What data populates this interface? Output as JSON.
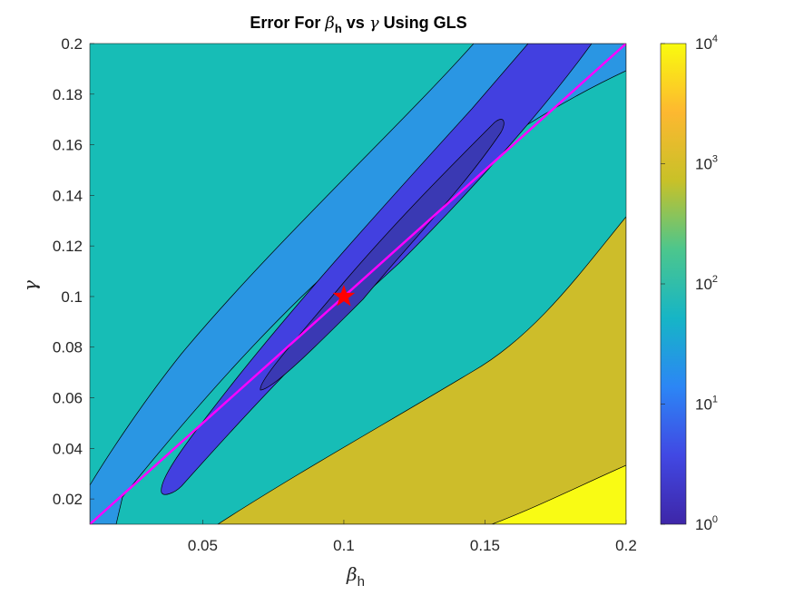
{
  "chart_data": {
    "type": "contour",
    "title_prefix": "Error For ",
    "title_sym_1": "β",
    "title_sub_1": "h",
    "title_mid": " vs ",
    "title_sym_2": "γ",
    "title_suffix": " Using GLS",
    "xlabel_sym": "β",
    "xlabel_sub": "h",
    "ylabel_sym": "γ",
    "xlim": [
      0.01,
      0.2
    ],
    "ylim": [
      0.01,
      0.2
    ],
    "x_ticks": [
      0.05,
      0.1,
      0.15,
      0.2
    ],
    "x_tick_labels": [
      "0.05",
      "0.1",
      "0.15",
      "0.2"
    ],
    "y_ticks": [
      0.02,
      0.04,
      0.06,
      0.08,
      0.1,
      0.12,
      0.14,
      0.16,
      0.18,
      0.2
    ],
    "y_tick_labels": [
      "0.02",
      "0.04",
      "0.06",
      "0.08",
      "0.1",
      "0.12",
      "0.14",
      "0.16",
      "0.18",
      "0.2"
    ],
    "colorbar": {
      "scale": "log",
      "min_exp": 0,
      "max_exp": 4,
      "tick_base": "10",
      "tick_exponents": [
        "0",
        "1",
        "2",
        "3",
        "4"
      ],
      "colors": [
        "#3e26a8",
        "#4148e3",
        "#2c86f5",
        "#16b5c6",
        "#4cc68d",
        "#c8c128",
        "#fdb830",
        "#f9fb0e"
      ]
    },
    "contour_levels": [
      {
        "name": "level-1e0-to-1e0.5",
        "color": "#3a39b3"
      },
      {
        "name": "level-1e0.5-to-1e1",
        "color": "#4240e0"
      },
      {
        "name": "level-1e1-to-1e1.5",
        "color": "#2a96e3"
      },
      {
        "name": "level-1e1.5-to-1e2.5",
        "color": "#17bdb6"
      },
      {
        "name": "level-1e2.5-to-1e3.5",
        "color": "#cdbd2a"
      },
      {
        "name": "level-above-1e3.5",
        "color": "#f9fb14"
      }
    ],
    "true_parameter": {
      "beta_h": 0.1,
      "gamma": 0.1,
      "marker": "star",
      "color": "#ff0000"
    },
    "reference_line": {
      "x": [
        0.01,
        0.2
      ],
      "y": [
        0.01,
        0.2
      ],
      "color": "#ff00ff"
    }
  }
}
